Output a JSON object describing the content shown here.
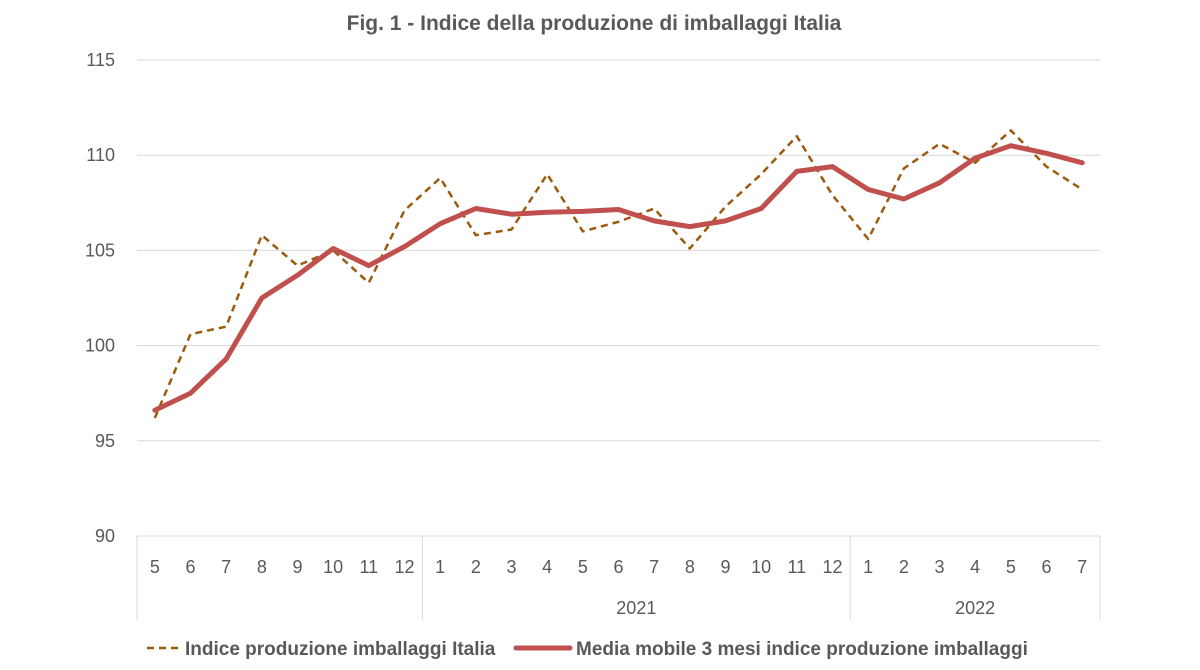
{
  "chart_data": {
    "type": "line",
    "title": "Fig. 1 - Indice della produzione di imballaggi Italia",
    "xlabel": "",
    "ylabel": "",
    "ylim": [
      90,
      115
    ],
    "yticks": [
      "90",
      "95",
      "100",
      "105",
      "110",
      "115"
    ],
    "grid": true,
    "legend_position": "bottom",
    "categories": [
      "5",
      "6",
      "7",
      "8",
      "9",
      "10",
      "11",
      "12",
      "1",
      "2",
      "3",
      "4",
      "5",
      "6",
      "7",
      "8",
      "9",
      "10",
      "11",
      "12",
      "1",
      "2",
      "3",
      "4",
      "5",
      "6",
      "7"
    ],
    "year_groups": [
      {
        "label": "",
        "start": 0,
        "end": 7
      },
      {
        "label": "2021",
        "start": 8,
        "end": 19
      },
      {
        "label": "2022",
        "start": 20,
        "end": 26
      }
    ],
    "series": [
      {
        "name": "Indice produzione imballaggi Italia",
        "color": "#9C5A0E",
        "style": "dashed",
        "values": [
          96.2,
          100.6,
          101.0,
          105.8,
          104.2,
          105.0,
          103.3,
          107.1,
          108.8,
          105.8,
          106.1,
          109.0,
          106.0,
          106.5,
          107.2,
          105.1,
          107.3,
          109.0,
          111.0,
          107.9,
          105.6,
          109.3,
          110.6,
          109.6,
          111.3,
          109.4,
          108.2
        ]
      },
      {
        "name": "Media mobile 3 mesi indice produzione imballaggi",
        "color": "#C0504D",
        "style": "solid",
        "values": [
          96.6,
          97.5,
          99.3,
          102.5,
          103.7,
          105.1,
          104.2,
          105.2,
          106.4,
          107.2,
          106.9,
          107.0,
          107.05,
          107.15,
          106.55,
          106.25,
          106.55,
          107.2,
          109.15,
          109.4,
          108.2,
          107.7,
          108.55,
          109.85,
          110.5,
          110.1,
          109.6
        ]
      }
    ]
  }
}
